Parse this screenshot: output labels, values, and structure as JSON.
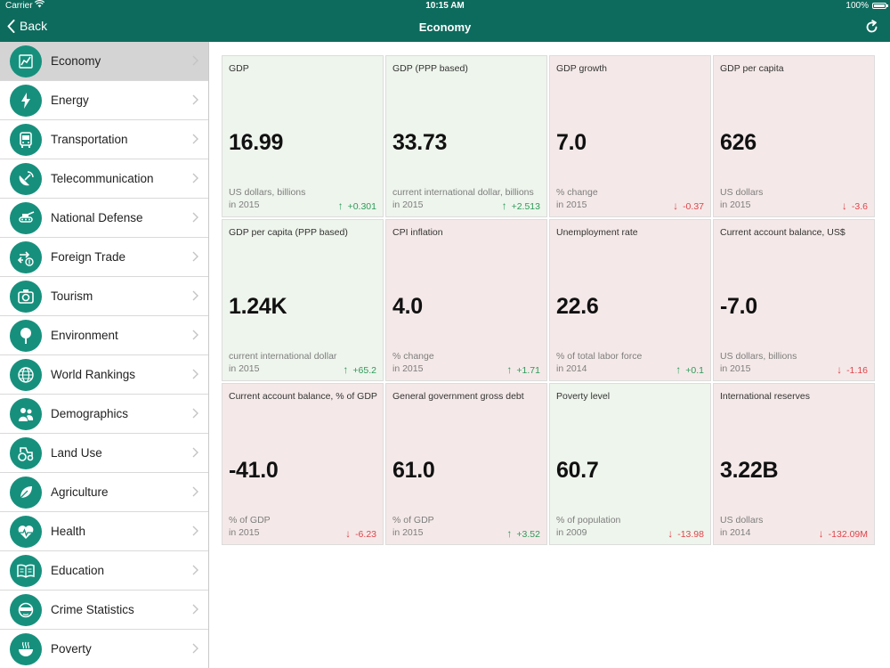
{
  "status_bar": {
    "carrier": "Carrier",
    "time": "10:15 AM",
    "battery": "100%"
  },
  "nav": {
    "back_label": "Back",
    "title": "Economy"
  },
  "colors": {
    "brand": "#0d6b5d",
    "icon_bg": "#16907d",
    "good_bg": "#eef5ec",
    "bad_bg": "#f4e9e8",
    "up": "#2e9a5a",
    "down": "#e0444b"
  },
  "sidebar": {
    "items": [
      {
        "label": "Economy",
        "icon": "chart-icon",
        "active": true
      },
      {
        "label": "Energy",
        "icon": "lightning-icon"
      },
      {
        "label": "Transportation",
        "icon": "bus-icon"
      },
      {
        "label": "Telecommunication",
        "icon": "satellite-dish-icon"
      },
      {
        "label": "National Defense",
        "icon": "tank-icon"
      },
      {
        "label": "Foreign Trade",
        "icon": "exchange-icon"
      },
      {
        "label": "Tourism",
        "icon": "camera-icon"
      },
      {
        "label": "Environment",
        "icon": "tree-icon"
      },
      {
        "label": "World Rankings",
        "icon": "globe-icon"
      },
      {
        "label": "Demographics",
        "icon": "people-icon"
      },
      {
        "label": "Land Use",
        "icon": "tractor-icon"
      },
      {
        "label": "Agriculture",
        "icon": "leaf-icon"
      },
      {
        "label": "Health",
        "icon": "heart-icon"
      },
      {
        "label": "Education",
        "icon": "book-icon"
      },
      {
        "label": "Crime Statistics",
        "icon": "thief-icon"
      },
      {
        "label": "Poverty",
        "icon": "bowl-icon"
      }
    ]
  },
  "cards": [
    {
      "title": "GDP",
      "value": "16.99",
      "unit": "US dollars, billions",
      "year": "in 2015",
      "change": "+0.301",
      "direction": "up",
      "tone": "good"
    },
    {
      "title": "GDP (PPP based)",
      "value": "33.73",
      "unit": "current international dollar, billions",
      "year": "in 2015",
      "change": "+2.513",
      "direction": "up",
      "tone": "good"
    },
    {
      "title": "GDP growth",
      "value": "7.0",
      "unit": "% change",
      "year": "in 2015",
      "change": "-0.37",
      "direction": "down",
      "tone": "bad"
    },
    {
      "title": "GDP per capita",
      "value": "626",
      "unit": "US dollars",
      "year": "in 2015",
      "change": "-3.6",
      "direction": "down",
      "tone": "bad"
    },
    {
      "title": "GDP per capita (PPP based)",
      "value": "1.24K",
      "unit": "current international dollar",
      "year": "in 2015",
      "change": "+65.2",
      "direction": "up",
      "tone": "good"
    },
    {
      "title": "CPI inflation",
      "value": "4.0",
      "unit": "% change",
      "year": "in 2015",
      "change": "+1.71",
      "direction": "up",
      "tone": "bad"
    },
    {
      "title": "Unemployment rate",
      "value": "22.6",
      "unit": "% of total labor force",
      "year": "in 2014",
      "change": "+0.1",
      "direction": "up",
      "tone": "bad"
    },
    {
      "title": "Current account balance, US$",
      "value": "-7.0",
      "unit": "US dollars, billions",
      "year": "in 2015",
      "change": "-1.16",
      "direction": "down",
      "tone": "bad"
    },
    {
      "title": "Current account balance, % of GDP",
      "value": "-41.0",
      "unit": "% of GDP",
      "year": "in 2015",
      "change": "-6.23",
      "direction": "down",
      "tone": "bad"
    },
    {
      "title": "General government gross debt",
      "value": "61.0",
      "unit": "% of GDP",
      "year": "in 2015",
      "change": "+3.52",
      "direction": "up",
      "tone": "bad"
    },
    {
      "title": "Poverty level",
      "value": "60.7",
      "unit": "% of population",
      "year": "in 2009",
      "change": "-13.98",
      "direction": "down",
      "tone": "good"
    },
    {
      "title": "International reserves",
      "value": "3.22B",
      "unit": "US dollars",
      "year": "in 2014",
      "change": "-132.09M",
      "direction": "down",
      "tone": "bad"
    }
  ]
}
